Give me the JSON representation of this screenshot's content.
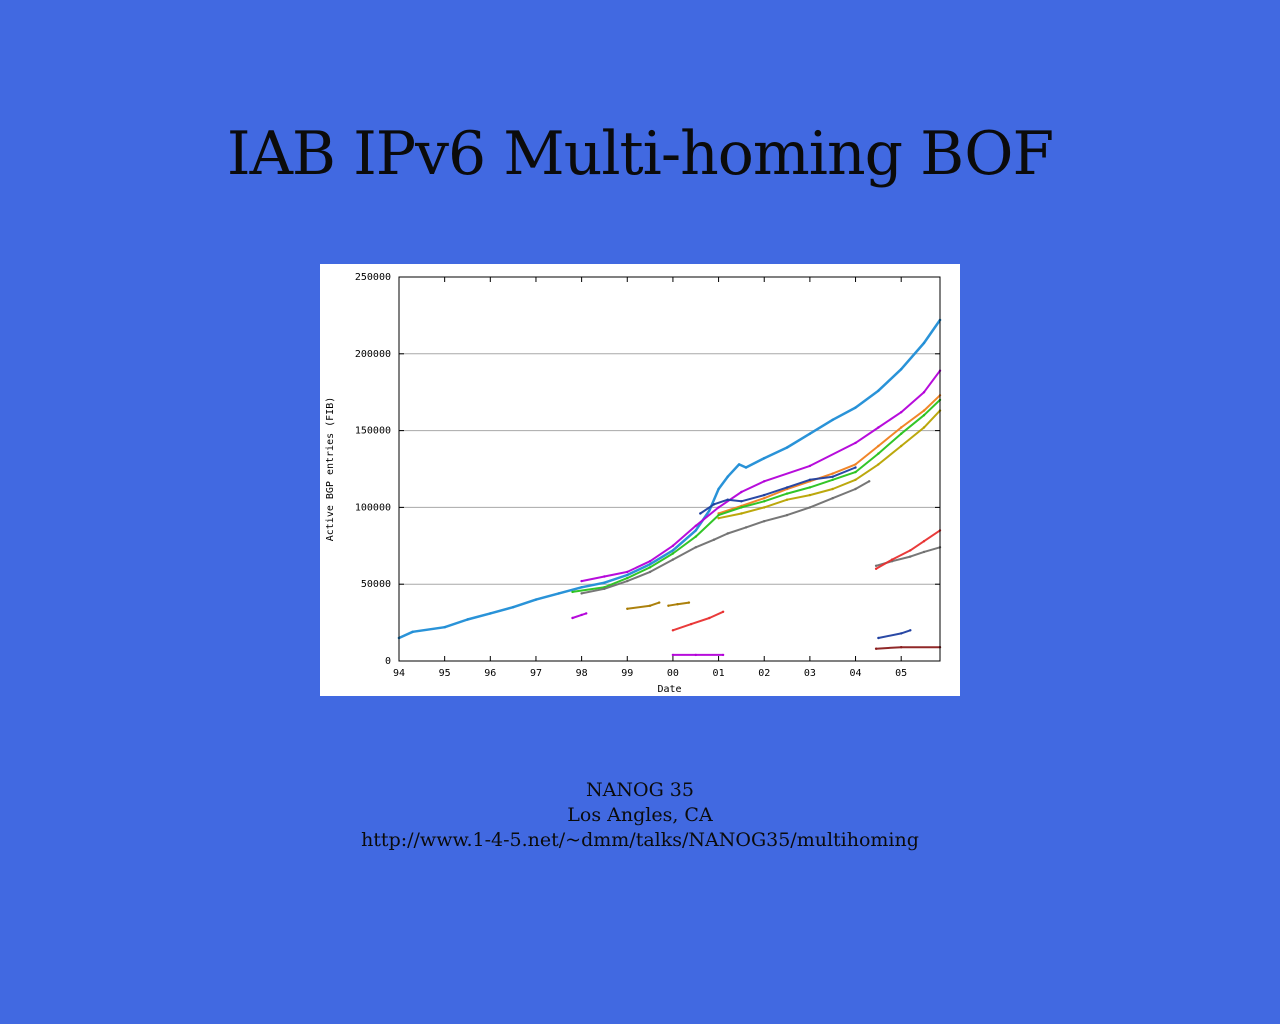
{
  "slide": {
    "title": "IAB IPv6 Multi-homing BOF",
    "footer": {
      "event": "NANOG 35",
      "location": "Los Angles, CA",
      "url": "http://www.1-4-5.net/~dmm/talks/NANOG35/multihoming"
    },
    "background_color": "#4169e1"
  },
  "chart_data": {
    "type": "scatter",
    "xlabel": "Date",
    "ylabel": "Active BGP entries (FIB)",
    "x_ticks": [
      "94",
      "95",
      "96",
      "97",
      "98",
      "99",
      "00",
      "01",
      "02",
      "03",
      "04",
      "05"
    ],
    "y_ticks": [
      "0",
      "50000",
      "100000",
      "150000",
      "200000",
      "250000"
    ],
    "xlim": [
      1994.0,
      2005.85
    ],
    "ylim": [
      0,
      250000
    ],
    "grid": "horizontal",
    "series": [
      {
        "color": "#1f8dd6",
        "points": [
          [
            1994.0,
            15000
          ],
          [
            1994.3,
            19000
          ],
          [
            1995.0,
            22000
          ],
          [
            1995.5,
            27000
          ],
          [
            1996.0,
            31000
          ],
          [
            1996.5,
            35000
          ],
          [
            1997.0,
            40000
          ],
          [
            1997.5,
            44000
          ],
          [
            1998.0,
            48000
          ],
          [
            1998.5,
            51000
          ],
          [
            1999.0,
            56000
          ],
          [
            1999.5,
            63000
          ],
          [
            2000.0,
            72000
          ],
          [
            2000.5,
            85000
          ],
          [
            2000.8,
            98000
          ],
          [
            2001.0,
            112000
          ],
          [
            2001.2,
            120000
          ],
          [
            2001.45,
            128000
          ],
          [
            2001.6,
            126000
          ],
          [
            2002.0,
            132000
          ],
          [
            2002.5,
            139000
          ],
          [
            2003.0,
            148000
          ],
          [
            2003.5,
            157000
          ],
          [
            2004.0,
            165000
          ],
          [
            2004.5,
            176000
          ],
          [
            2005.0,
            190000
          ],
          [
            2005.5,
            207000
          ],
          [
            2005.85,
            222000
          ]
        ]
      },
      {
        "color": "#b300d9",
        "points": [
          [
            1998.0,
            52000
          ],
          [
            1998.5,
            55000
          ],
          [
            1999.0,
            58000
          ],
          [
            1999.5,
            65000
          ],
          [
            2000.0,
            75000
          ],
          [
            2000.5,
            88000
          ],
          [
            2001.0,
            100000
          ],
          [
            2001.5,
            110000
          ],
          [
            2002.0,
            117000
          ],
          [
            2003.0,
            127000
          ],
          [
            2004.0,
            142000
          ],
          [
            2004.5,
            152000
          ],
          [
            2005.0,
            162000
          ],
          [
            2005.5,
            175000
          ],
          [
            2005.85,
            189000
          ]
        ]
      },
      {
        "color": "#f0801e",
        "points": [
          [
            2001.0,
            96000
          ],
          [
            2001.5,
            101000
          ],
          [
            2002.0,
            106000
          ],
          [
            2002.5,
            112000
          ],
          [
            2003.0,
            117000
          ],
          [
            2003.5,
            122000
          ],
          [
            2004.0,
            128000
          ],
          [
            2004.5,
            140000
          ],
          [
            2005.0,
            152000
          ],
          [
            2005.5,
            163000
          ],
          [
            2005.85,
            173000
          ]
        ]
      },
      {
        "color": "#28c21c",
        "points": [
          [
            1997.8,
            45000
          ],
          [
            1998.5,
            48000
          ],
          [
            1999.0,
            54000
          ],
          [
            1999.5,
            61000
          ],
          [
            2000.0,
            70000
          ],
          [
            2000.5,
            81000
          ],
          [
            2001.0,
            95000
          ],
          [
            2001.5,
            100000
          ],
          [
            2002.0,
            104000
          ],
          [
            2002.5,
            109000
          ],
          [
            2003.0,
            113000
          ],
          [
            2003.5,
            118000
          ],
          [
            2004.0,
            123000
          ],
          [
            2004.5,
            135000
          ],
          [
            2005.0,
            148000
          ],
          [
            2005.5,
            160000
          ],
          [
            2005.85,
            170000
          ]
        ]
      },
      {
        "color": "#1f3fa0",
        "points": [
          [
            2000.6,
            96000
          ],
          [
            2000.9,
            102000
          ],
          [
            2001.2,
            105000
          ],
          [
            2001.5,
            104000
          ],
          [
            2002.0,
            108000
          ],
          [
            2002.5,
            113000
          ],
          [
            2003.0,
            118000
          ],
          [
            2003.5,
            120000
          ],
          [
            2004.0,
            126000
          ]
        ]
      },
      {
        "color": "#b8a300",
        "points": [
          [
            2001.0,
            93000
          ],
          [
            2001.5,
            96000
          ],
          [
            2002.0,
            100000
          ],
          [
            2002.5,
            105000
          ],
          [
            2003.0,
            108000
          ],
          [
            2003.5,
            112000
          ],
          [
            2004.0,
            118000
          ],
          [
            2004.5,
            128000
          ],
          [
            2005.0,
            140000
          ],
          [
            2005.5,
            152000
          ],
          [
            2005.85,
            163000
          ]
        ]
      },
      {
        "color": "#707070",
        "points": [
          [
            1998.0,
            44000
          ],
          [
            1998.5,
            47000
          ],
          [
            1999.0,
            52000
          ],
          [
            1999.5,
            58000
          ],
          [
            2000.0,
            66000
          ],
          [
            2000.5,
            74000
          ],
          [
            2000.9,
            79000
          ],
          [
            2001.2,
            83000
          ],
          [
            2001.6,
            87000
          ],
          [
            2002.0,
            91000
          ],
          [
            2002.5,
            95000
          ],
          [
            2003.0,
            100000
          ],
          [
            2003.5,
            106000
          ],
          [
            2004.0,
            112000
          ],
          [
            2004.3,
            117000
          ]
        ]
      },
      {
        "color": "#707070",
        "points": [
          [
            2004.45,
            62000
          ],
          [
            2004.8,
            65000
          ],
          [
            2005.2,
            68000
          ],
          [
            2005.5,
            71000
          ],
          [
            2005.85,
            74000
          ]
        ]
      },
      {
        "color": "#e83030",
        "points": [
          [
            2004.45,
            60000
          ],
          [
            2004.8,
            66000
          ],
          [
            2005.2,
            72000
          ],
          [
            2005.5,
            78000
          ],
          [
            2005.85,
            85000
          ]
        ]
      },
      {
        "color": "#a87a00",
        "points": [
          [
            1999.0,
            34000
          ],
          [
            1999.5,
            36000
          ],
          [
            1999.7,
            38000
          ]
        ]
      },
      {
        "color": "#a87a00",
        "points": [
          [
            1999.9,
            36000
          ],
          [
            2000.1,
            37000
          ],
          [
            2000.35,
            38000
          ]
        ]
      },
      {
        "color": "#e83030",
        "points": [
          [
            2000.0,
            20000
          ],
          [
            2000.4,
            24000
          ],
          [
            2000.8,
            28000
          ],
          [
            2001.1,
            32000
          ]
        ]
      },
      {
        "color": "#b300d9",
        "points": [
          [
            2000.0,
            4000
          ],
          [
            2000.5,
            4000
          ],
          [
            2001.1,
            4000
          ]
        ]
      },
      {
        "color": "#1f3fa0",
        "points": [
          [
            2004.5,
            15000
          ],
          [
            2005.0,
            18000
          ],
          [
            2005.2,
            20000
          ]
        ]
      },
      {
        "color": "#8a1c1c",
        "points": [
          [
            2004.45,
            8000
          ],
          [
            2005.0,
            9000
          ],
          [
            2005.85,
            9000
          ]
        ]
      },
      {
        "color": "#b300d9",
        "points": [
          [
            1997.8,
            28000
          ],
          [
            1998.0,
            30000
          ],
          [
            1998.1,
            31000
          ]
        ]
      }
    ]
  }
}
